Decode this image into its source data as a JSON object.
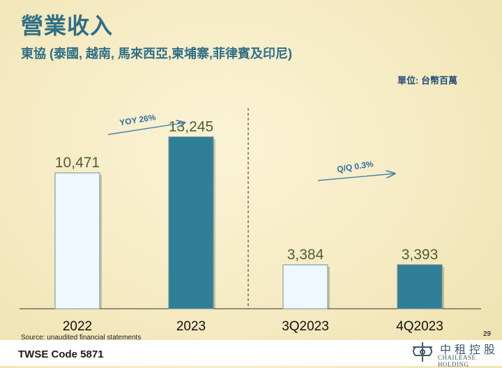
{
  "header": {
    "title": "營業收入",
    "subtitle": "東協 (泰國, 越南, 馬來西亞,柬埔寨,菲律賓及印尼)",
    "unit": "單位: 台幣百萬"
  },
  "chart_data": {
    "type": "bar",
    "categories": [
      "2022",
      "2023",
      "3Q2023",
      "4Q2023"
    ],
    "values": [
      10471,
      13245,
      3384,
      3393
    ],
    "value_labels": [
      "10,471",
      "13,245",
      "3,384",
      "3,393"
    ],
    "ylim": [
      0,
      14500
    ],
    "grid": false,
    "colors": {
      "light": "#eef8ff",
      "dark": "#2f7f98",
      "label": "#4e5e36",
      "note": "#2e6f9e"
    },
    "bar_style": [
      "light",
      "dark",
      "light",
      "dark"
    ],
    "groups": [
      {
        "annotation": "YOY 26%",
        "categories": [
          "2022",
          "2023"
        ]
      },
      {
        "annotation": "Q/Q 0.3%",
        "categories": [
          "3Q2023",
          "4Q2023"
        ]
      }
    ]
  },
  "footer": {
    "source": "Source: unaudited financial statements",
    "page": "29",
    "code": "TWSE Code 5871",
    "logo_cn": "中租控股",
    "logo_en": "CHAILEASE HOLDING"
  }
}
